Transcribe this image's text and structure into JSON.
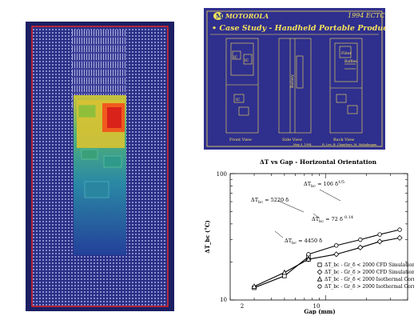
{
  "slide": {
    "brand": "MOTOROLA",
    "conference": "1994 ECTC",
    "title": "• Case Study - Handheld Portable Product",
    "view_labels": [
      "Front View",
      "Side View",
      "Back View"
    ],
    "component_labels": {
      "ic": "IC",
      "filter": "Filter",
      "battery": "Battery",
      "baffles": "Baffles"
    },
    "footer_date": "May 3, 1994",
    "footer_authors": "R. Lee, B. Chambers, M. Mahalingam",
    "colors": {
      "background": "#2f2f8e",
      "text": "#f3e25a",
      "logo_text": "#1a2f8a"
    }
  },
  "chart_data": {
    "type": "scatter",
    "title": "ΔT vs Gap - Horizontal Orientation",
    "xlabel": "Gap (mm)",
    "ylabel": "ΔT_bc (°C)",
    "x_scale": "log",
    "y_scale": "log",
    "xlim": [
      2,
      40
    ],
    "ylim": [
      10,
      100
    ],
    "x_ticks": [
      "2",
      "10"
    ],
    "y_ticks": [
      "10",
      "100"
    ],
    "series": [
      {
        "name": "ΔT_bc - Gr_δ < 2000 CFD Simulation",
        "marker": "square",
        "points": [
          [
            3,
            12.5
          ],
          [
            5,
            15.5
          ],
          [
            7.5,
            22
          ]
        ]
      },
      {
        "name": "ΔT_bc - Gr_δ > 2000 CFD Simulation",
        "marker": "diamond",
        "points": [
          [
            7.5,
            21
          ],
          [
            12,
            23
          ],
          [
            18,
            26
          ],
          [
            25,
            29
          ],
          [
            35,
            31
          ]
        ]
      },
      {
        "name": "ΔT_bc - Gr_δ < 2000 Isothermal Corr.",
        "marker": "triangle",
        "points": [
          [
            3,
            12.8
          ],
          [
            5,
            16.5
          ],
          [
            7.5,
            21
          ]
        ]
      },
      {
        "name": "ΔT_bc - Gr_δ > 2000 Isothermal Corr.",
        "marker": "circle",
        "points": [
          [
            7.5,
            23
          ],
          [
            12,
            27
          ],
          [
            18,
            30
          ],
          [
            25,
            33
          ],
          [
            35,
            36
          ]
        ]
      }
    ],
    "annotations": [
      {
        "text": "ΔT",
        "sub": "bc",
        "rest": " = 5220 δ"
      },
      {
        "text": "ΔT",
        "sub": "bc",
        "rest": " = 4450 δ"
      },
      {
        "text": "ΔT",
        "sub": "bc",
        "rest": " = 106 δ",
        "sup": "1/5"
      },
      {
        "text": "ΔT",
        "sub": "bc",
        "rest": " = 72 δ ",
        "sup": "0.14"
      }
    ]
  }
}
